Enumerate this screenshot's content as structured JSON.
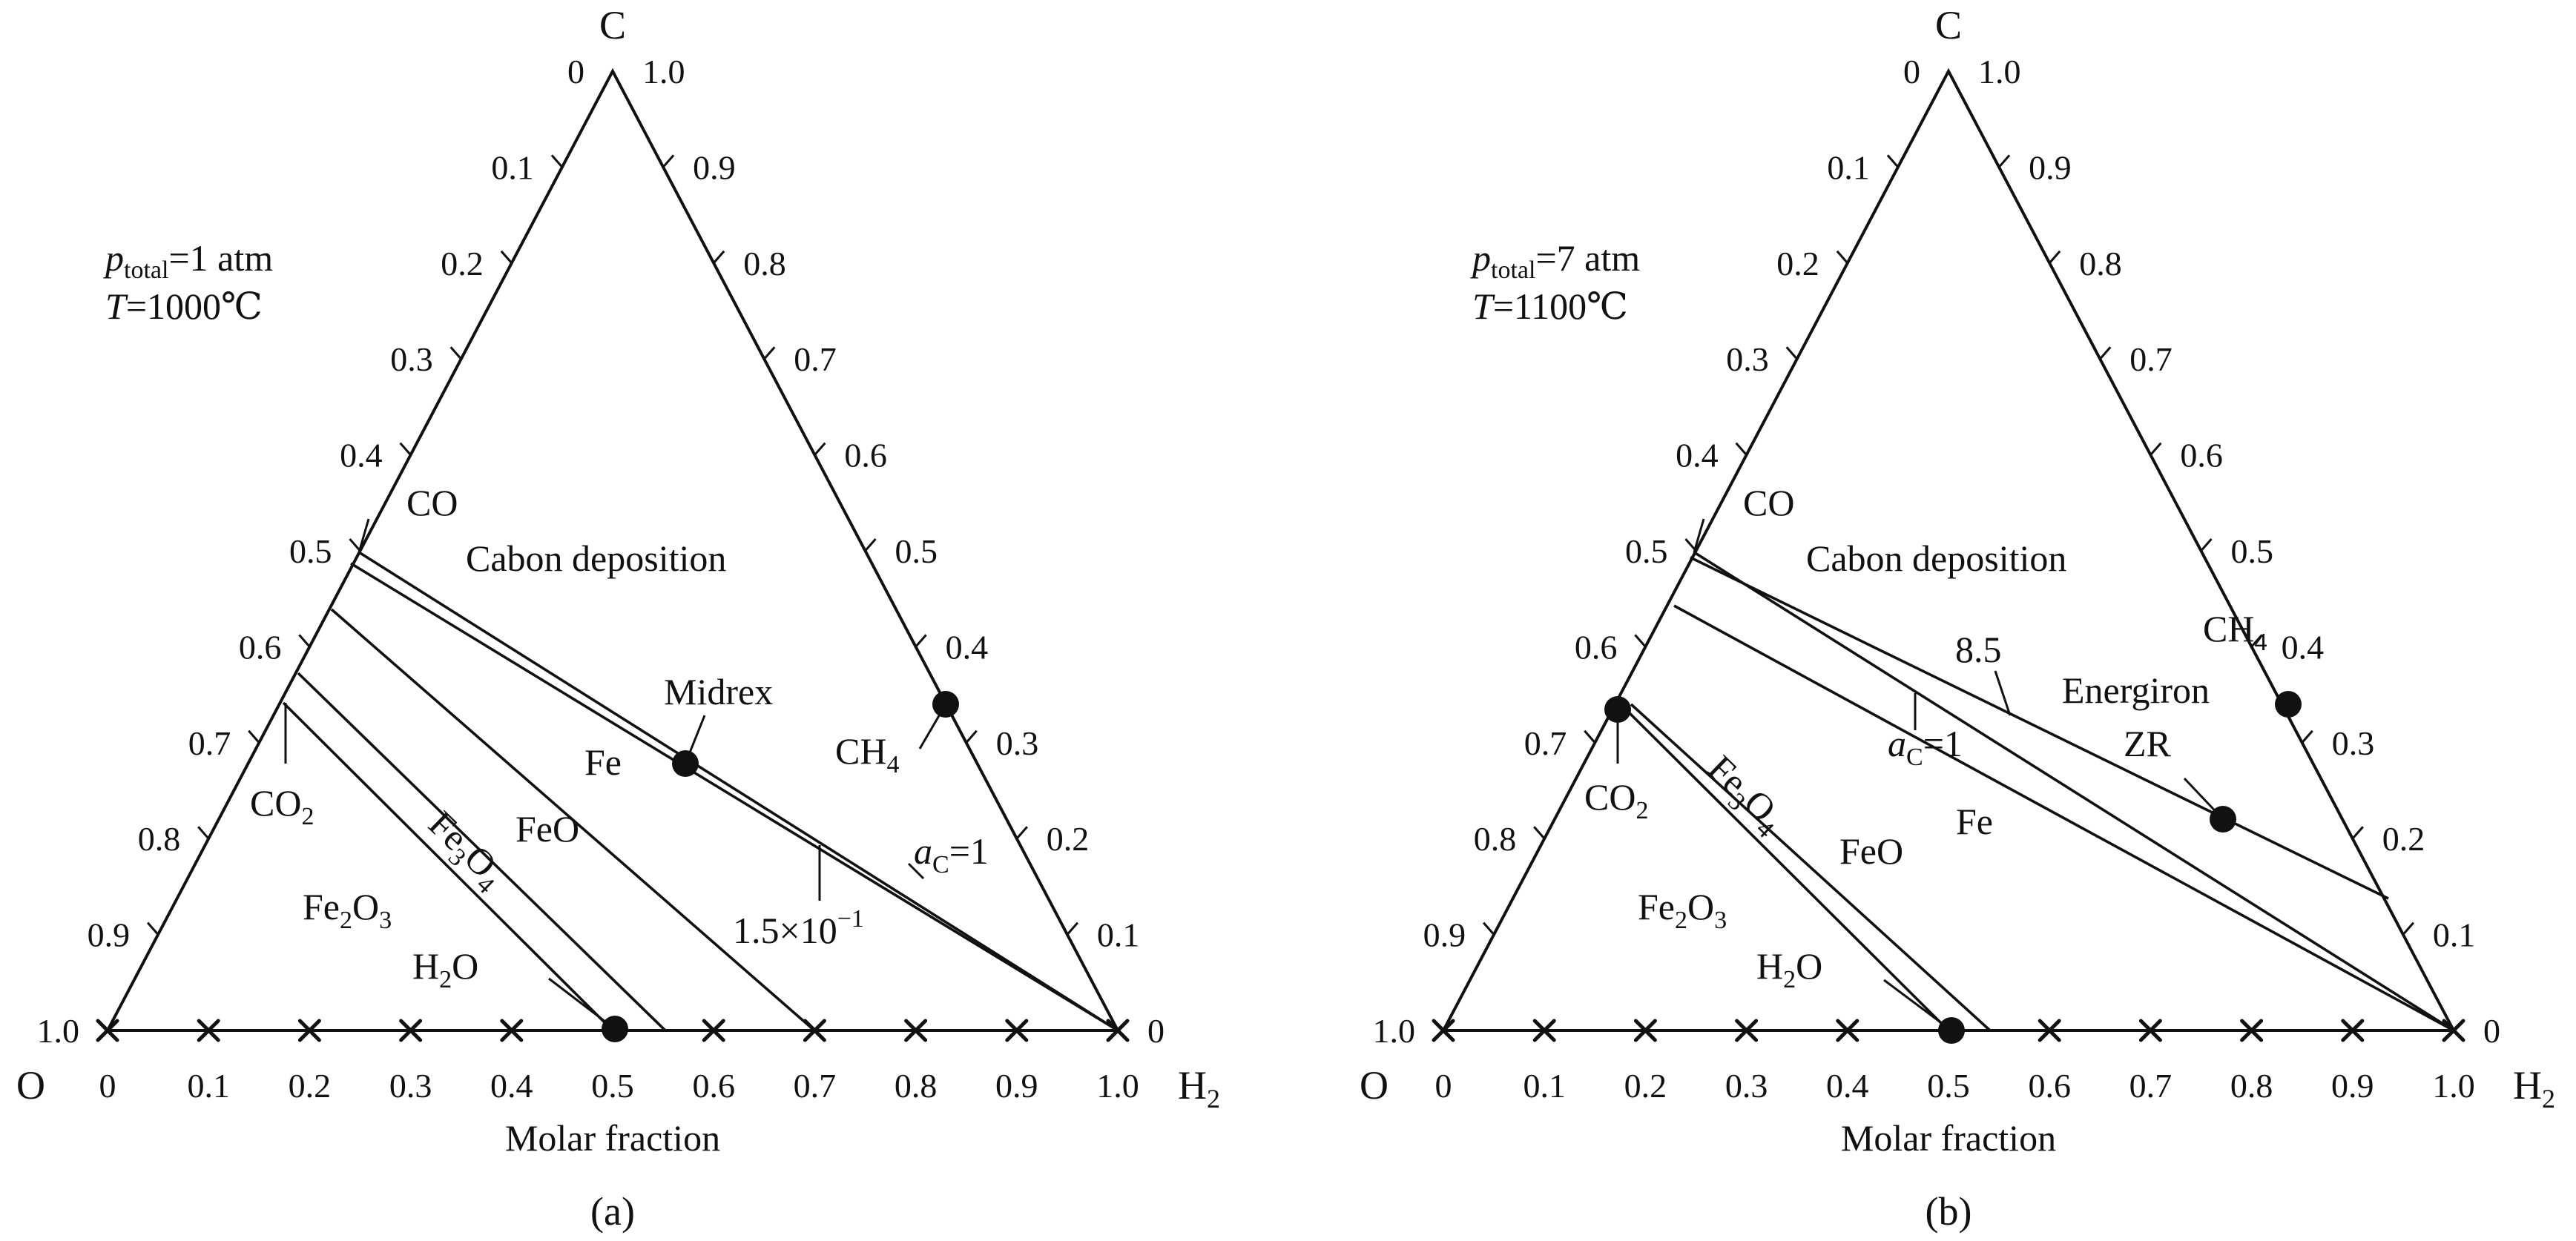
{
  "diagrams": [
    {
      "id": "a",
      "caption": "(a)",
      "corner_top": "C",
      "corner_left": "O",
      "corner_right": "H",
      "corner_right_sub": "2",
      "axis_label": "Molar fraction",
      "cond_p_italic": "p",
      "cond_p_sub": "total",
      "cond_p_rest": "=1 atm",
      "cond_t_italic": "T",
      "cond_t_rest": "=1000℃",
      "left_ticks": [
        "0",
        "0.1",
        "0.2",
        "0.3",
        "0.4",
        "0.5",
        "0.6",
        "0.7",
        "0.8",
        "0.9",
        "1.0"
      ],
      "right_ticks": [
        "1.0",
        "0.9",
        "0.8",
        "0.7",
        "0.6",
        "0.5",
        "0.4",
        "0.3",
        "0.2",
        "0.1",
        "0"
      ],
      "bottom_ticks": [
        "0",
        "0.1",
        "0.2",
        "0.3",
        "0.4",
        "0.5",
        "0.6",
        "0.7",
        "0.8",
        "0.9",
        "1.0"
      ],
      "labels": {
        "co": "CO",
        "carbon": "Cabon deposition",
        "fe": "Fe",
        "feo": "FeO",
        "fe3o4": "Fe",
        "fe3o4_s1": "3",
        "fe3o4_m": "O",
        "fe3o4_s2": "4",
        "fe2o3": "Fe",
        "fe2o3_s": "2",
        "fe2o3_r": "O",
        "fe2o3_s2": "3",
        "h2o": "H",
        "h2o_s": "2",
        "h2o_r": "O",
        "co2": "CO",
        "co2_s": "2",
        "ch4": "CH",
        "ch4_s": "4",
        "midrex": "Midrex",
        "ac_i": "a",
        "ac_s": "C",
        "ac_r": "=1",
        "kval_base": "1.5×10",
        "kval_exp": "−1"
      },
      "boundaries": [
        {
          "name": "ac1",
          "from": [
            0.48,
            0.52
          ],
          "to": [
            0.0,
            0.0
          ]
        },
        {
          "name": "k015",
          "from": [
            0.49,
            0.51
          ],
          "to": [
            0.0,
            0.0
          ]
        },
        {
          "name": "fe-feo",
          "from": [
            0.42,
            0.43
          ],
          "to": [
            0.3,
            0.0
          ]
        },
        {
          "name": "feo-fe3o4",
          "from": [
            0.35,
            0.38
          ],
          "to": [
            0.45,
            0.0
          ]
        },
        {
          "name": "fe3o4-fe2o3",
          "from": [
            0.33,
            0.34
          ],
          "to": [
            0.5,
            0.0
          ]
        }
      ],
      "points": [
        {
          "name": "midrex",
          "c": 0.31,
          "h2": 0.53
        },
        {
          "name": "ch4",
          "c": 0.34,
          "h2": 0.66
        },
        {
          "name": "h2o",
          "c": 0.0,
          "h2": 0.5
        }
      ]
    },
    {
      "id": "b",
      "caption": "(b)",
      "corner_top": "C",
      "corner_left": "O",
      "corner_right": "H",
      "corner_right_sub": "2",
      "axis_label": "Molar fraction",
      "cond_p_italic": "p",
      "cond_p_sub": "total",
      "cond_p_rest": "=7 atm",
      "cond_t_italic": "T",
      "cond_t_rest": "=1100℃",
      "left_ticks": [
        "0",
        "0.1",
        "0.2",
        "0.3",
        "0.4",
        "0.5",
        "0.6",
        "0.7",
        "0.8",
        "0.9",
        "1.0"
      ],
      "right_ticks": [
        "1.0",
        "0.9",
        "0.8",
        "0.7",
        "0.6",
        "0.5",
        "0.4",
        "0.3",
        "0.2",
        "0.1",
        "0"
      ],
      "bottom_ticks": [
        "0",
        "0.1",
        "0.2",
        "0.3",
        "0.4",
        "0.5",
        "0.6",
        "0.7",
        "0.8",
        "0.9",
        "1.0"
      ],
      "labels": {
        "co": "CO",
        "carbon": "Cabon deposition",
        "fe": "Fe",
        "feo": "FeO",
        "fe3o4": "Fe",
        "fe3o4_s1": "3",
        "fe3o4_m": "O",
        "fe3o4_s2": "4",
        "fe2o3": "Fe",
        "fe2o3_s": "2",
        "fe2o3_r": "O",
        "fe2o3_s2": "3",
        "h2o": "H",
        "h2o_s": "2",
        "h2o_r": "O",
        "co2": "CO",
        "co2_s": "2",
        "ch4": "CH",
        "ch4_s": "4",
        "energiron": "Energiron",
        "zr": "ZR",
        "ac_i": "a",
        "ac_s": "C",
        "ac_r": "=1",
        "kval": "8.5"
      },
      "boundaries": [
        {
          "name": "ac1",
          "from": [
            0.49,
            0.51
          ],
          "to": [
            0.0,
            0.0
          ]
        },
        {
          "name": "k85",
          "from": [
            0.5,
            0.5
          ],
          "to": [
            0.13,
            0.87
          ]
        },
        {
          "name": "fe-feo",
          "from": [
            0.44,
            0.45
          ],
          "to": [
            0.0,
            0.0
          ]
        },
        {
          "name": "feo-fe3o4",
          "from": [
            0.33,
            0.36
          ],
          "to": [
            0.54,
            0.0
          ]
        },
        {
          "name": "fe3o4-fe2o3",
          "from": [
            0.33,
            0.34
          ],
          "to": [
            0.5,
            0.0
          ]
        }
      ],
      "points": [
        {
          "name": "energiron",
          "c": 0.34,
          "h2": 0.66
        },
        {
          "name": "zr",
          "c": 0.22,
          "h2": 0.65
        },
        {
          "name": "co2",
          "c": 0.33,
          "h2": 0.0
        },
        {
          "name": "h2o",
          "c": 0.0,
          "h2": 0.5
        }
      ]
    }
  ]
}
